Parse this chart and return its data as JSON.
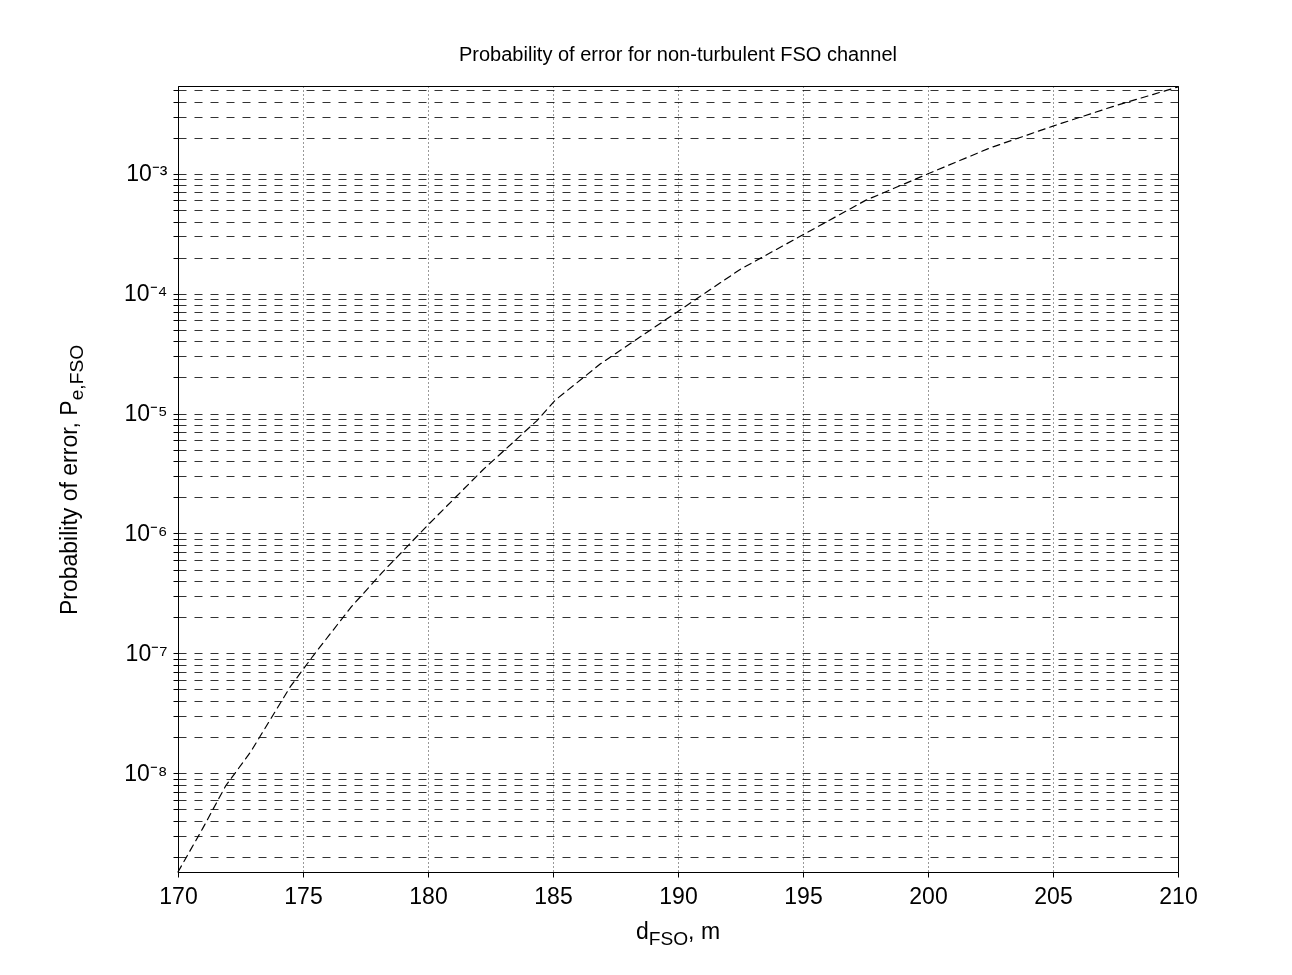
{
  "chart_data": {
    "type": "line",
    "title": "Probability of error for non-turbulent FSO channel",
    "xlabel": "d$_{FSO}$, m",
    "ylabel": "Probability of error,  P$_{e,FSO}$",
    "x": [
      170,
      171,
      171.9,
      172.9,
      174.5,
      175.4,
      176.9,
      178.2,
      179.95,
      182.2,
      184.35,
      185.1,
      186.9,
      190.2,
      192.5,
      195,
      197.5,
      200,
      202.5,
      205,
      207.5,
      210
    ],
    "series": [
      {
        "color": "#000000",
        "values": [
          1.5e-09,
          3.5e-09,
          7.8e-09,
          1.5e-08,
          5.3e-08,
          9.5e-08,
          2.4e-07,
          4.8e-07,
          1.15e-06,
          3.4e-06,
          8.7e-06,
          1.3e-05,
          2.6e-05,
          7.6e-05,
          0.00016,
          0.00031,
          0.0006,
          0.001,
          0.00165,
          0.0025,
          0.0037,
          0.0053
        ]
      }
    ],
    "xlim": [
      170,
      210
    ],
    "xticks": [
      170,
      175,
      180,
      185,
      190,
      195,
      200,
      205,
      210
    ],
    "ylim": [
      1.5e-09,
      0.0054
    ],
    "log": true,
    "yticks": [
      {
        "value": 2e-09,
        "label": null
      },
      {
        "value": 3e-09,
        "label": null
      },
      {
        "value": 4e-09,
        "label": null
      },
      {
        "value": 5e-09,
        "label": null
      },
      {
        "value": 6e-09,
        "label": null
      },
      {
        "value": 7e-09,
        "label": null
      },
      {
        "value": 8e-09,
        "label": null
      },
      {
        "value": 9e-09,
        "label": null
      },
      {
        "value": 1e-08,
        "label": "10⁻⁸"
      },
      {
        "value": 2e-08,
        "label": null
      },
      {
        "value": 3e-08,
        "label": null
      },
      {
        "value": 4e-08,
        "label": null
      },
      {
        "value": 5e-08,
        "label": null
      },
      {
        "value": 6e-08,
        "label": null
      },
      {
        "value": 7e-08,
        "label": null
      },
      {
        "value": 8e-08,
        "label": null
      },
      {
        "value": 9e-08,
        "label": null
      },
      {
        "value": 1e-07,
        "label": "10⁻⁷"
      },
      {
        "value": 2e-07,
        "label": null
      },
      {
        "value": 3e-07,
        "label": null
      },
      {
        "value": 4e-07,
        "label": null
      },
      {
        "value": 5e-07,
        "label": null
      },
      {
        "value": 6e-07,
        "label": null
      },
      {
        "value": 7e-07,
        "label": null
      },
      {
        "value": 8e-07,
        "label": null
      },
      {
        "value": 9e-07,
        "label": null
      },
      {
        "value": 1e-06,
        "label": "10⁻⁶"
      },
      {
        "value": 2e-06,
        "label": null
      },
      {
        "value": 3e-06,
        "label": null
      },
      {
        "value": 4e-06,
        "label": null
      },
      {
        "value": 5e-06,
        "label": null
      },
      {
        "value": 6e-06,
        "label": null
      },
      {
        "value": 7e-06,
        "label": null
      },
      {
        "value": 8e-06,
        "label": null
      },
      {
        "value": 9e-06,
        "label": null
      },
      {
        "value": 1e-05,
        "label": "10⁻⁵"
      },
      {
        "value": 2e-05,
        "label": null
      },
      {
        "value": 3e-05,
        "label": null
      },
      {
        "value": 4e-05,
        "label": null
      },
      {
        "value": 5e-05,
        "label": null
      },
      {
        "value": 6e-05,
        "label": null
      },
      {
        "value": 7e-05,
        "label": null
      },
      {
        "value": 8e-05,
        "label": null
      },
      {
        "value": 9e-05,
        "label": null
      },
      {
        "value": 0.0001,
        "label": "10⁻⁴"
      },
      {
        "value": 0.0002,
        "label": null
      },
      {
        "value": 0.0003,
        "label": null
      },
      {
        "value": 0.0004,
        "label": null
      },
      {
        "value": 0.0005,
        "label": null
      },
      {
        "value": 0.0006,
        "label": null
      },
      {
        "value": 0.0007,
        "label": null
      },
      {
        "value": 0.0008,
        "label": null
      },
      {
        "value": 0.0009,
        "label": null
      },
      {
        "value": 0.001,
        "label": "10⁻³"
      },
      {
        "value": 0.002,
        "label": null
      },
      {
        "value": 0.003,
        "label": null
      },
      {
        "value": 0.004,
        "label": null
      },
      {
        "value": 0.005,
        "label": null
      }
    ],
    "grid": true,
    "line_style": "dashed"
  }
}
